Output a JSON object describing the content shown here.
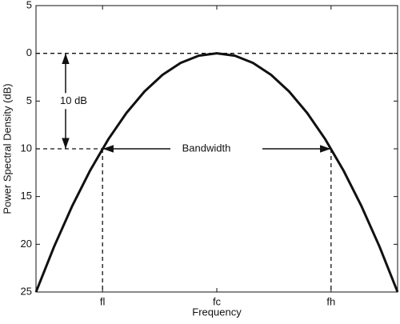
{
  "chart_data": {
    "type": "line",
    "xlabel": "Frequency",
    "ylabel": "Power Spectral Density (dB)",
    "x": [
      -1,
      -0.9,
      -0.8,
      -0.7,
      -0.6,
      -0.5,
      -0.4,
      -0.3,
      -0.2,
      -0.1,
      0,
      0.1,
      0.2,
      0.3,
      0.4,
      0.5,
      0.6,
      0.7,
      0.8,
      0.9,
      1
    ],
    "series": [
      {
        "color": "#111111",
        "values": [
          -25,
          -20.25,
          -16,
          -12.25,
          -9,
          -6.25,
          -4,
          -2.25,
          -1,
          -0.25,
          0,
          -0.25,
          -1,
          -2.25,
          -4,
          -6.25,
          -9,
          -12.25,
          -16,
          -20.25,
          -25
        ]
      }
    ],
    "xlim": [
      -1,
      1
    ],
    "xticks": [
      {
        "value": -0.632,
        "label": "fl"
      },
      {
        "value": 0,
        "label": "fc"
      },
      {
        "value": 0.632,
        "label": "fh"
      }
    ],
    "ylim": [
      -25,
      5
    ],
    "yticks": [
      {
        "value": -25,
        "label": "25"
      },
      {
        "value": -20,
        "label": "20"
      },
      {
        "value": -15,
        "label": "15"
      },
      {
        "value": -10,
        "label": "10"
      },
      {
        "value": -5,
        "label": "5"
      },
      0,
      5
    ],
    "hlines": [
      0,
      -10
    ],
    "annotations": [
      "10 dB",
      "Bandwidth"
    ]
  }
}
